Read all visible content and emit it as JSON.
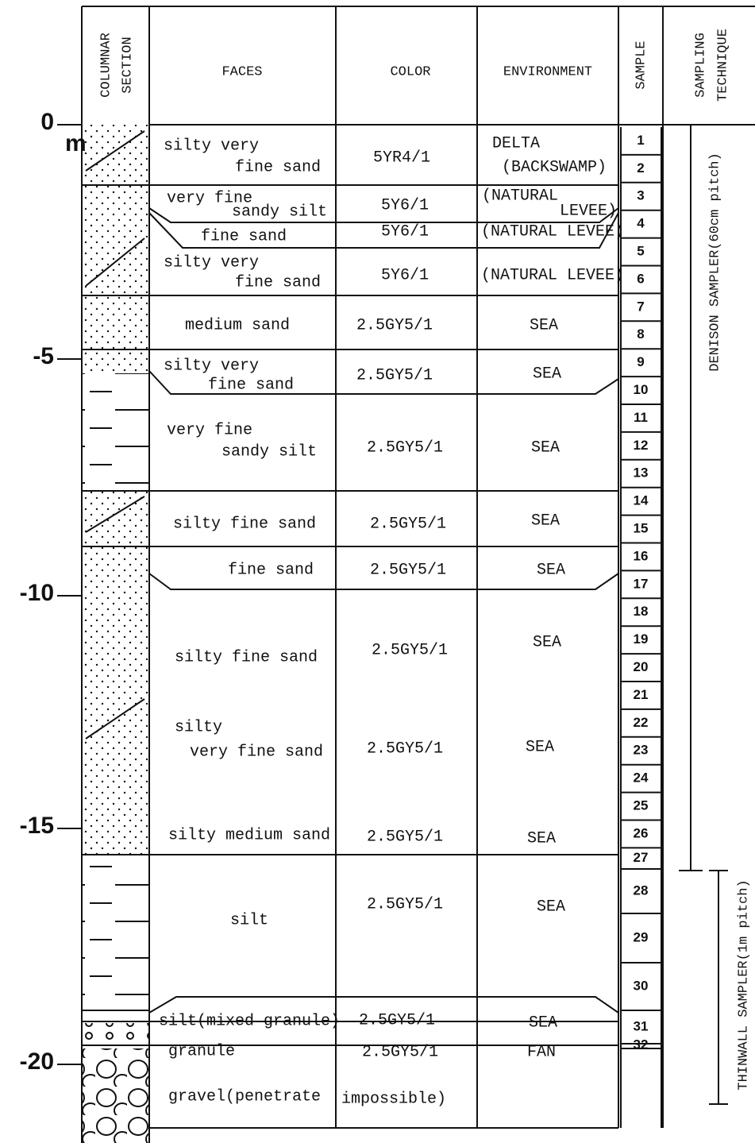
{
  "headers": {
    "columnar": [
      "COLUMNAR",
      "SECTION"
    ],
    "faces": "FACES",
    "color": "COLOR",
    "environment": "ENVIRONMENT",
    "sample": "SAMPLE",
    "technique": [
      "SAMPLING",
      "TECHNIQUE"
    ]
  },
  "depth": {
    "labels": [
      "0",
      "-5",
      "-10",
      "-15",
      "-20"
    ],
    "unit": "m"
  },
  "layers": [
    {
      "faces": [
        "silty very",
        "fine sand"
      ],
      "color": "5YR4/1",
      "environment": [
        "DELTA",
        "(BACKSWAMP)"
      ]
    },
    {
      "faces": [
        "very fine",
        "sandy silt"
      ],
      "color": "5Y6/1",
      "environment": [
        "(NATURAL",
        "LEVEE)"
      ]
    },
    {
      "faces": [
        "fine sand"
      ],
      "color": "5Y6/1",
      "environment": [
        "(NATURAL LEVEE)"
      ]
    },
    {
      "faces": [
        "silty very",
        "fine sand"
      ],
      "color": "5Y6/1",
      "environment": [
        "(NATURAL LEVEE)"
      ]
    },
    {
      "faces": [
        "medium sand"
      ],
      "color": "2.5GY5/1",
      "environment": [
        "SEA"
      ]
    },
    {
      "faces": [
        "silty very",
        "fine sand"
      ],
      "color": "2.5GY5/1",
      "environment": [
        "SEA"
      ]
    },
    {
      "faces": [
        "very fine",
        "sandy silt"
      ],
      "color": "2.5GY5/1",
      "environment": [
        "SEA"
      ]
    },
    {
      "faces": [
        "silty fine sand"
      ],
      "color": "2.5GY5/1",
      "environment": [
        "SEA"
      ]
    },
    {
      "faces": [
        "fine sand"
      ],
      "color": "2.5GY5/1",
      "environment": [
        "SEA"
      ]
    },
    {
      "faces": [
        "silty fine sand"
      ],
      "color": "2.5GY5/1",
      "environment": [
        "SEA"
      ]
    },
    {
      "faces": [
        "silty",
        "very fine sand"
      ],
      "color": "2.5GY5/1",
      "environment": [
        "SEA"
      ]
    },
    {
      "faces": [
        "silty medium sand"
      ],
      "color": "2.5GY5/1",
      "environment": [
        "SEA"
      ]
    },
    {
      "faces": [
        "silt"
      ],
      "color": "2.5GY5/1",
      "environment": [
        "SEA"
      ]
    },
    {
      "faces": [
        "silt(mixed granule)"
      ],
      "color": "2.5GY5/1",
      "environment": [
        "SEA"
      ]
    },
    {
      "faces": [
        "granule"
      ],
      "color": "2.5GY5/1",
      "environment": [
        "FAN"
      ]
    },
    {
      "faces": [
        "gravel(penetrate"
      ],
      "color": "impossible)"
    }
  ],
  "samples": [
    "1",
    "2",
    "3",
    "4",
    "5",
    "6",
    "7",
    "8",
    "9",
    "10",
    "11",
    "12",
    "13",
    "14",
    "15",
    "16",
    "17",
    "18",
    "19",
    "20",
    "21",
    "22",
    "23",
    "24",
    "25",
    "26",
    "27",
    "28",
    "29",
    "30",
    "31",
    "32"
  ],
  "techniques": [
    "DENISON SAMPLER(60cm pitch)",
    "THINWALL SAMPLER(1m pitch)"
  ]
}
